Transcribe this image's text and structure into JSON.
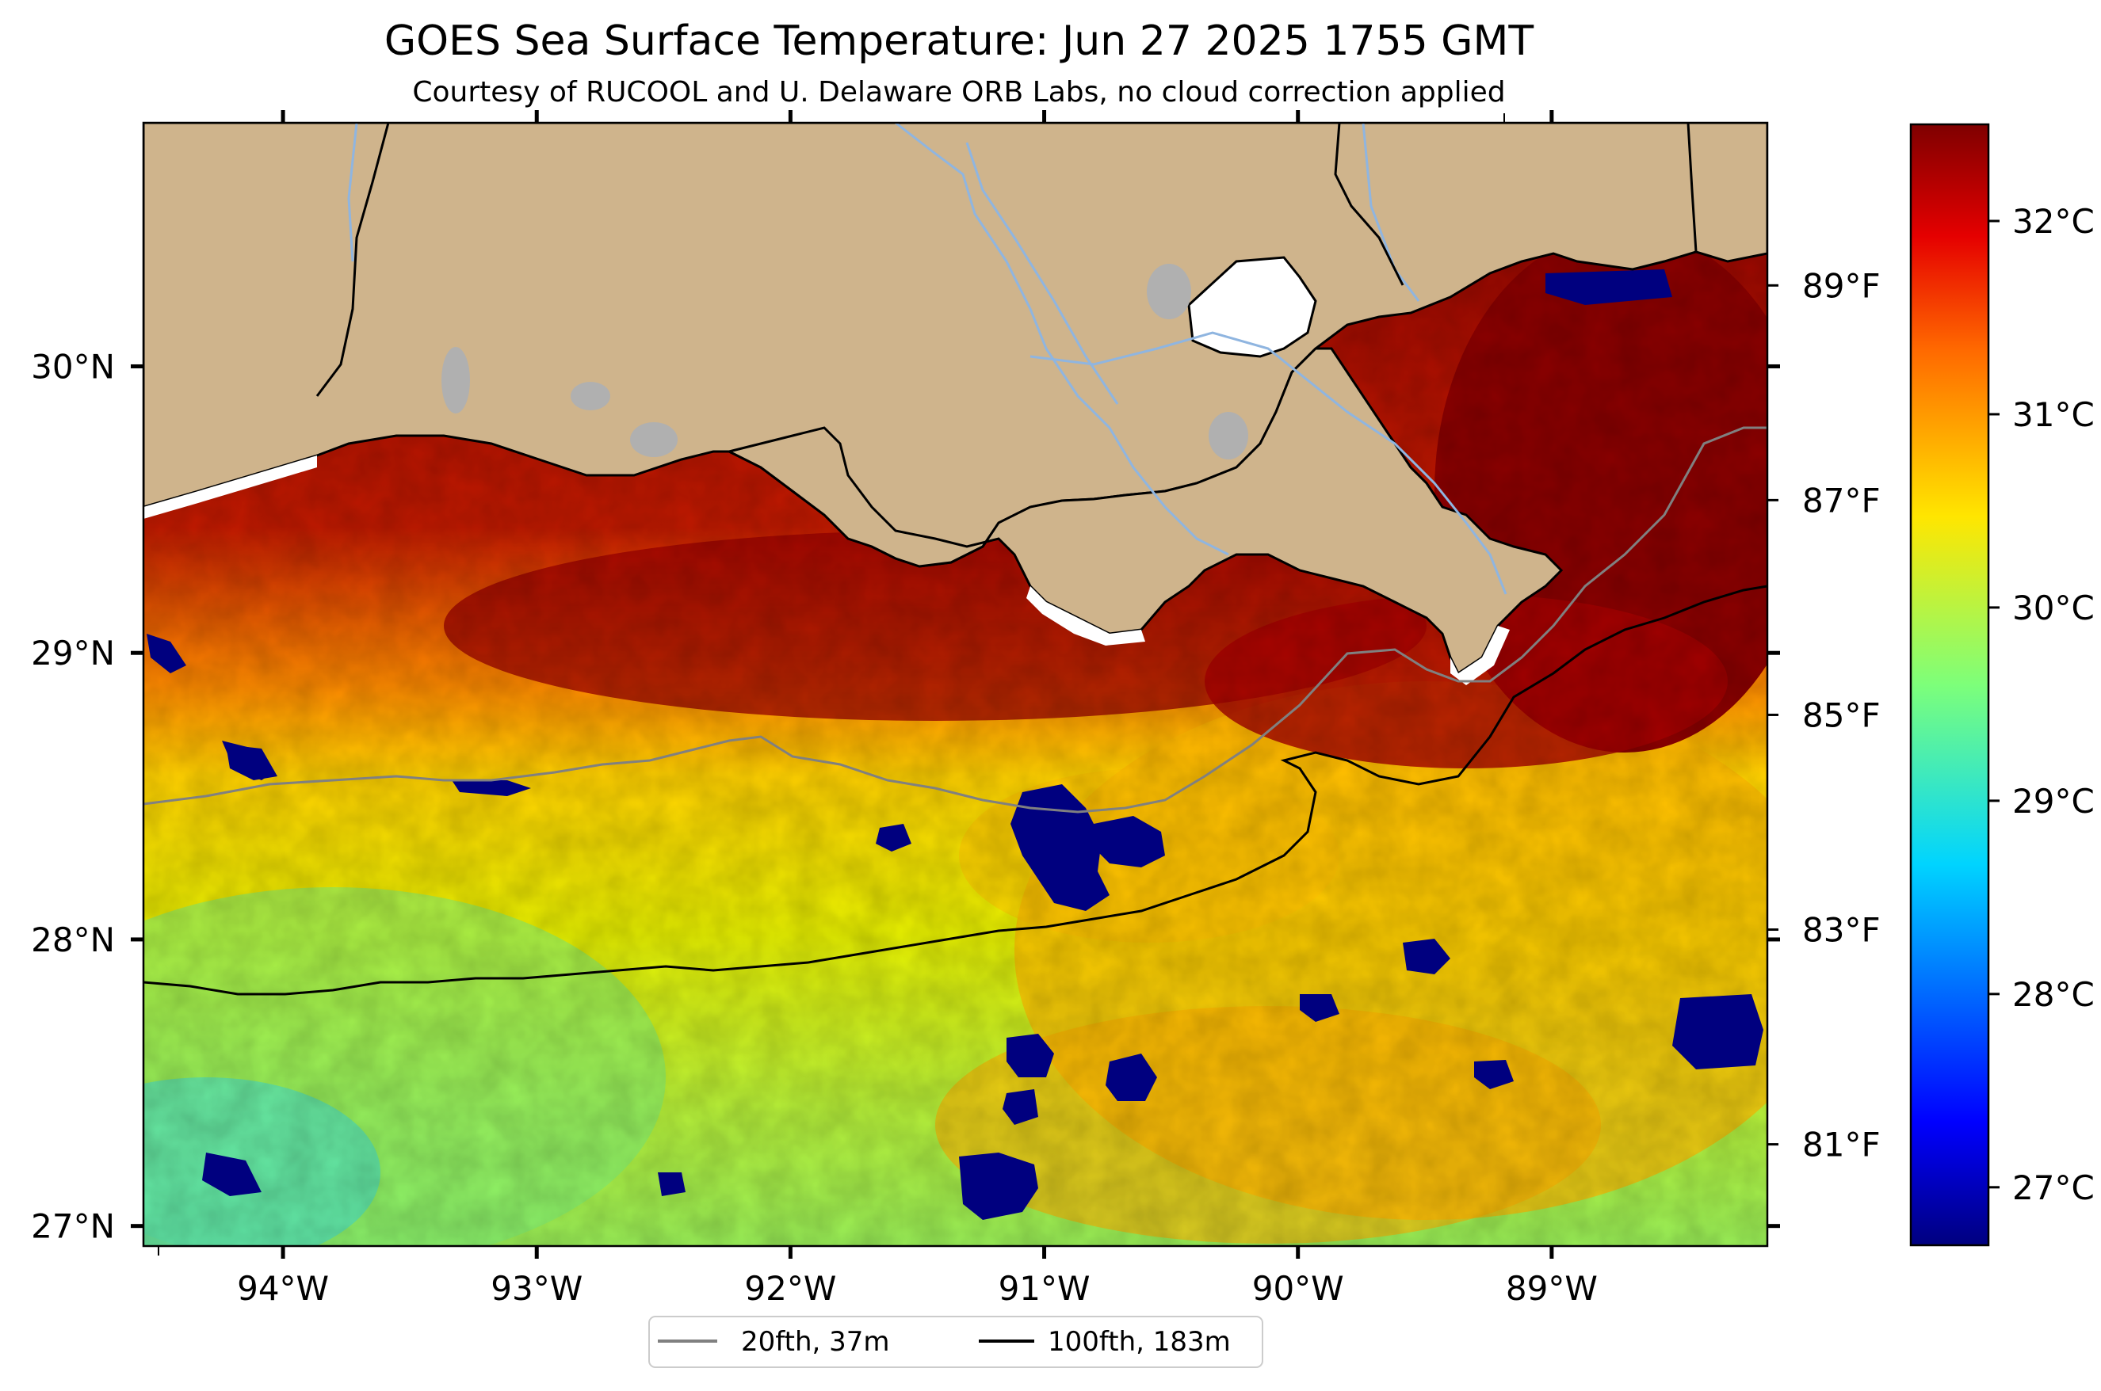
{
  "title": "GOES Sea Surface Temperature: Jun 27 2025 1755 GMT",
  "subtitle": "Courtesy of RUCOOL and U. Delaware ORB Labs, no cloud correction applied",
  "map": {
    "lon_range": [
      -94.55,
      -88.15
    ],
    "lat_range": [
      26.93,
      30.85
    ],
    "land_color": "#cfb48c",
    "lake_color": "#b0b0b0",
    "river_color": "#8fb5e0",
    "lon_ticks": [
      {
        "value": -94,
        "label": "94°W"
      },
      {
        "value": -93,
        "label": "93°W"
      },
      {
        "value": -92,
        "label": "92°W"
      },
      {
        "value": -91,
        "label": "91°W"
      },
      {
        "value": -90,
        "label": "90°W"
      },
      {
        "value": -89,
        "label": "89°W"
      }
    ],
    "lat_ticks": [
      {
        "value": 27,
        "label": "27°N"
      },
      {
        "value": 28,
        "label": "28°N"
      },
      {
        "value": 29,
        "label": "29°N"
      },
      {
        "value": 30,
        "label": "30°N"
      }
    ]
  },
  "colorbar": {
    "colormap": "jet",
    "range_c": [
      26.7,
      32.5
    ],
    "celsius_ticks": [
      {
        "value": 27,
        "label": "27°C"
      },
      {
        "value": 28,
        "label": "28°C"
      },
      {
        "value": 29,
        "label": "29°C"
      },
      {
        "value": 30,
        "label": "30°C"
      },
      {
        "value": 31,
        "label": "31°C"
      },
      {
        "value": 32,
        "label": "32°C"
      }
    ],
    "fahrenheit_ticks": [
      {
        "value": 81,
        "label": "81°F"
      },
      {
        "value": 83,
        "label": "83°F"
      },
      {
        "value": 85,
        "label": "85°F"
      },
      {
        "value": 87,
        "label": "87°F"
      },
      {
        "value": 89,
        "label": "89°F"
      }
    ]
  },
  "legend": {
    "placement": "bottom-center",
    "items": [
      {
        "label": "20fth, 37m",
        "color": "#808080"
      },
      {
        "label": "100fth, 183m",
        "color": "#000000"
      }
    ]
  }
}
